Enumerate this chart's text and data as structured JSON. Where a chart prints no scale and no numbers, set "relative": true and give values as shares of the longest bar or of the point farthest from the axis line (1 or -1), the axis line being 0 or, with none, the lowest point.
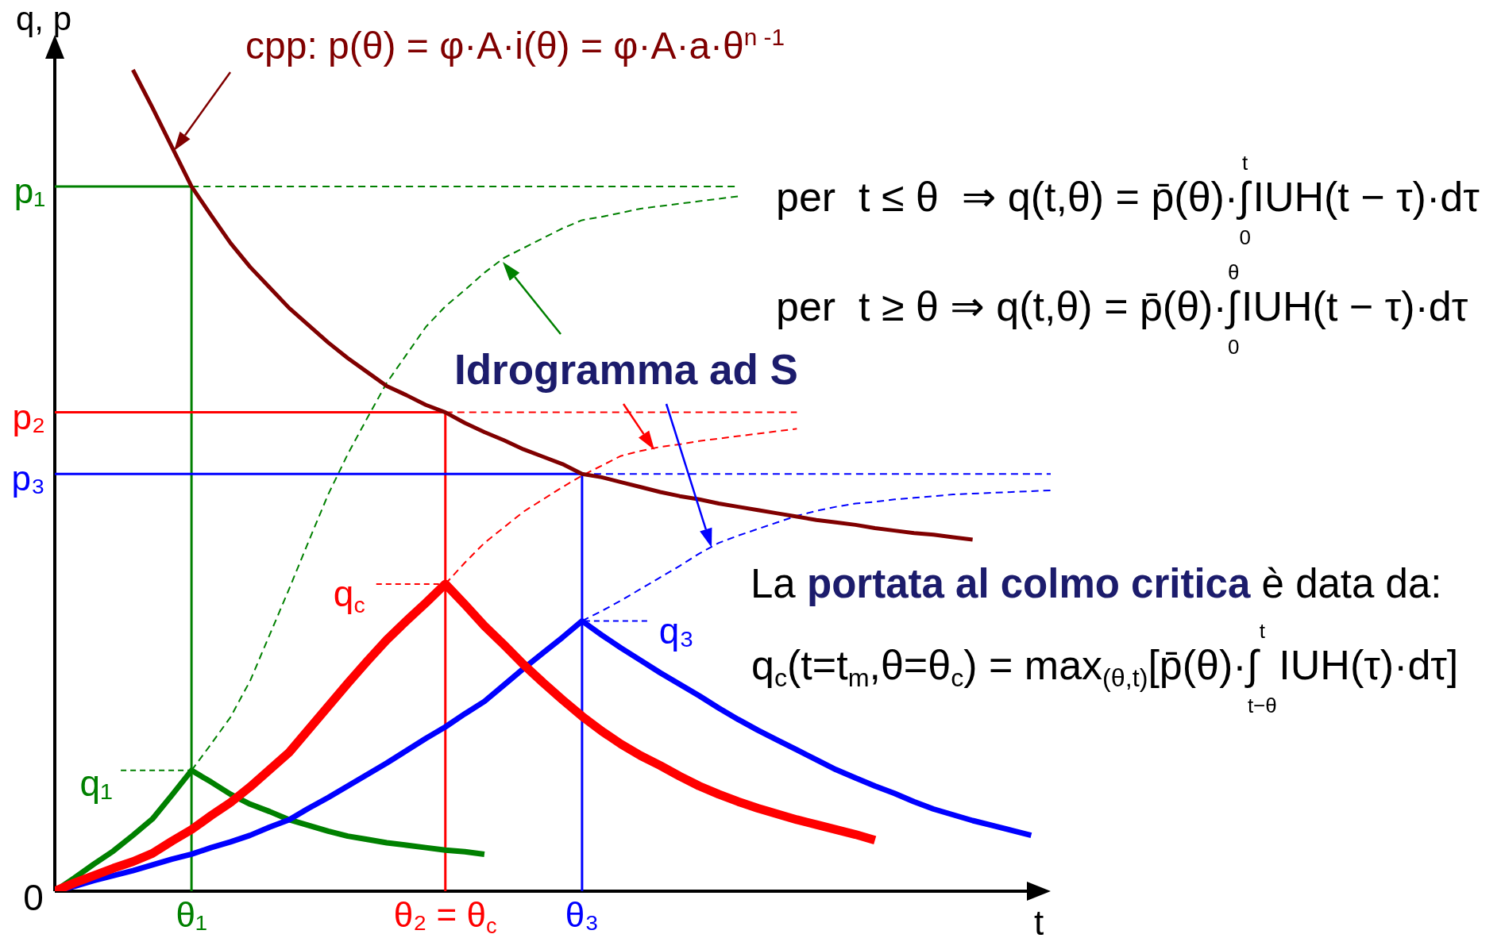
{
  "chart_data": {
    "type": "line",
    "relative": true,
    "xlabel": "t",
    "ylabel": "q, p",
    "categories": [
      null,
      null,
      null,
      null,
      null,
      null,
      null,
      "θ₁",
      null,
      null,
      null,
      null,
      null,
      null,
      null,
      null,
      null,
      null,
      null,
      null,
      "θ₂ = θ$_{c}$",
      null,
      null,
      null,
      null,
      null,
      null,
      "θ₃",
      null,
      null,
      null,
      null,
      null,
      null,
      null,
      null,
      null,
      null,
      null,
      null,
      null,
      null,
      null,
      null,
      null,
      null,
      null,
      null,
      null,
      null,
      null,
      null
    ],
    "series": [
      {
        "name": "cpp: p(θ) = φ·A·i(θ) = φ·A·a·θ$^{n -1}$",
        "color": "#800000",
        "values": [
          null,
          null,
          null,
          null,
          1.0,
          0.954,
          0.906,
          0.858,
          0.823,
          0.789,
          0.76,
          0.735,
          0.71,
          0.689,
          0.668,
          0.649,
          0.632,
          0.615,
          0.604,
          0.592,
          0.583,
          0.57,
          0.559,
          0.549,
          0.538,
          0.529,
          0.52,
          0.508,
          0.504,
          0.498,
          0.492,
          0.486,
          0.481,
          0.477,
          0.472,
          0.468,
          0.464,
          0.46,
          0.456,
          0.452,
          0.449,
          0.446,
          0.442,
          0.439,
          0.436,
          0.434,
          0.431,
          0.428,
          null,
          null,
          null,
          null
        ]
      },
      {
        "color": "#008000",
        "values": [
          0,
          0.016,
          0.033,
          0.049,
          0.068,
          0.088,
          0.117,
          0.147,
          0.133,
          0.118,
          0.106,
          0.097,
          0.087,
          0.08,
          0.073,
          0.067,
          0.063,
          0.059,
          0.056,
          0.053,
          0.05,
          0.048,
          0.045,
          null,
          null,
          null,
          null,
          null,
          null,
          null,
          null,
          null,
          null,
          null,
          null,
          null,
          null,
          null,
          null,
          null,
          null,
          null,
          null,
          null,
          null,
          null,
          null,
          null,
          null,
          null,
          null,
          null
        ]
      },
      {
        "color": "#ff0000",
        "values": [
          0,
          0.01,
          0.019,
          0.028,
          0.036,
          0.046,
          0.061,
          0.075,
          0.092,
          0.108,
          0.127,
          0.148,
          0.169,
          0.197,
          0.225,
          0.253,
          0.28,
          0.306,
          0.329,
          0.351,
          0.374,
          0.349,
          0.323,
          0.3,
          0.276,
          0.254,
          0.233,
          0.213,
          0.195,
          0.179,
          0.165,
          0.153,
          0.14,
          0.128,
          0.118,
          0.109,
          0.101,
          0.094,
          0.087,
          0.081,
          0.075,
          0.069,
          0.062,
          null,
          null,
          null,
          null,
          null,
          null,
          null,
          null,
          null
        ]
      },
      {
        "color": "#0000ff",
        "values": [
          0,
          0.006,
          0.013,
          0.019,
          0.025,
          0.032,
          0.039,
          0.045,
          0.053,
          0.06,
          0.068,
          0.078,
          0.087,
          0.101,
          0.114,
          0.128,
          0.142,
          0.156,
          0.171,
          0.186,
          0.2,
          0.216,
          0.231,
          0.251,
          0.271,
          0.29,
          0.309,
          0.329,
          0.312,
          0.296,
          0.281,
          0.266,
          0.252,
          0.238,
          0.223,
          0.209,
          0.196,
          0.184,
          0.172,
          0.16,
          0.148,
          0.138,
          0.128,
          0.119,
          0.109,
          0.1,
          0.093,
          0.086,
          0.08,
          0.074,
          0.068,
          null
        ]
      },
      {
        "color": "#008000",
        "line_style": "dashed",
        "values": [
          null,
          null,
          null,
          null,
          null,
          null,
          null,
          0.147,
          0.179,
          0.212,
          0.256,
          0.312,
          0.368,
          0.426,
          0.483,
          0.532,
          0.576,
          0.619,
          0.653,
          0.687,
          0.712,
          0.732,
          0.753,
          0.771,
          0.783,
          0.795,
          0.807,
          0.817,
          0.821,
          0.826,
          0.831,
          0.834,
          0.837,
          0.84,
          0.843,
          0.846,
          null,
          null,
          null,
          null,
          null,
          null,
          null,
          null,
          null,
          null,
          null,
          null,
          null,
          null,
          null,
          null
        ]
      },
      {
        "color": "#ff0000",
        "line_style": "dashed",
        "values": [
          null,
          null,
          null,
          null,
          null,
          null,
          null,
          null,
          null,
          null,
          null,
          null,
          null,
          null,
          null,
          null,
          null,
          null,
          null,
          null,
          0.374,
          0.4,
          0.424,
          0.443,
          0.462,
          0.477,
          0.492,
          0.506,
          0.518,
          0.53,
          0.536,
          0.541,
          0.544,
          0.548,
          0.551,
          0.554,
          0.557,
          0.56,
          0.563,
          null,
          null,
          null,
          null,
          null,
          null,
          null,
          null,
          null,
          null,
          null,
          null,
          null
        ]
      },
      {
        "color": "#0000ff",
        "line_style": "dashed",
        "values": [
          null,
          null,
          null,
          null,
          null,
          null,
          null,
          null,
          null,
          null,
          null,
          null,
          null,
          null,
          null,
          null,
          null,
          null,
          null,
          null,
          null,
          null,
          null,
          null,
          null,
          null,
          null,
          0.329,
          0.341,
          0.354,
          0.368,
          0.382,
          0.396,
          0.411,
          0.424,
          0.433,
          0.441,
          0.449,
          0.457,
          0.463,
          0.468,
          0.472,
          0.474,
          0.477,
          0.479,
          0.481,
          0.483,
          0.484,
          0.485,
          0.486,
          0.487,
          0.488
        ]
      },
      {
        "name": "p₁",
        "color": "#008000",
        "values": [
          0.858,
          0.858,
          0.858,
          0.858,
          0.858,
          0.858,
          0.858,
          0.858,
          null,
          null,
          null,
          null,
          null,
          null,
          null,
          null,
          null,
          null,
          null,
          null,
          null,
          null,
          null,
          null,
          null,
          null,
          null,
          null,
          null,
          null,
          null,
          null,
          null,
          null,
          null,
          null,
          null,
          null,
          null,
          null,
          null,
          null,
          null,
          null,
          null,
          null,
          null,
          null,
          null,
          null,
          null,
          null
        ]
      },
      {
        "name": "p₂",
        "color": "#ff0000",
        "values": [
          0.583,
          0.583,
          0.583,
          0.583,
          0.583,
          0.583,
          0.583,
          0.583,
          0.583,
          0.583,
          0.583,
          0.583,
          0.583,
          0.583,
          0.583,
          0.583,
          0.583,
          0.583,
          0.583,
          0.583,
          0.583,
          null,
          null,
          null,
          null,
          null,
          null,
          null,
          null,
          null,
          null,
          null,
          null,
          null,
          null,
          null,
          null,
          null,
          null,
          null,
          null,
          null,
          null,
          null,
          null,
          null,
          null,
          null,
          null,
          null,
          null,
          null
        ]
      },
      {
        "name": "p₃",
        "color": "#0000ff",
        "values": [
          0.508,
          0.508,
          0.508,
          0.508,
          0.508,
          0.508,
          0.508,
          0.508,
          0.508,
          0.508,
          0.508,
          0.508,
          0.508,
          0.508,
          0.508,
          0.508,
          0.508,
          0.508,
          0.508,
          0.508,
          0.508,
          0.508,
          0.508,
          0.508,
          0.508,
          0.508,
          0.508,
          0.508,
          null,
          null,
          null,
          null,
          null,
          null,
          null,
          null,
          null,
          null,
          null,
          null,
          null,
          null,
          null,
          null,
          null,
          null,
          null,
          null,
          null,
          null,
          null,
          null
        ]
      },
      {
        "color": "#008000",
        "line_style": "dashed",
        "values": [
          null,
          null,
          null,
          null,
          null,
          null,
          null,
          0.858,
          0.858,
          0.858,
          0.858,
          0.858,
          0.858,
          0.858,
          0.858,
          0.858,
          0.858,
          0.858,
          0.858,
          0.858,
          0.858,
          0.858,
          0.858,
          0.858,
          0.858,
          0.858,
          0.858,
          0.858,
          0.858,
          0.858,
          0.858,
          0.858,
          0.858,
          0.858,
          0.858,
          0.858,
          null,
          null,
          null,
          null,
          null,
          null,
          null,
          null,
          null,
          null,
          null,
          null,
          null,
          null,
          null,
          null
        ]
      },
      {
        "color": "#ff0000",
        "line_style": "dashed",
        "values": [
          null,
          null,
          null,
          null,
          null,
          null,
          null,
          null,
          null,
          null,
          null,
          null,
          null,
          null,
          null,
          null,
          null,
          null,
          null,
          null,
          0.583,
          0.583,
          0.583,
          0.583,
          0.583,
          0.583,
          0.583,
          0.583,
          0.583,
          0.583,
          0.583,
          0.583,
          0.583,
          0.583,
          0.583,
          0.583,
          0.583,
          0.583,
          0.583,
          null,
          null,
          null,
          null,
          null,
          null,
          null,
          null,
          null,
          null,
          null,
          null,
          null
        ]
      },
      {
        "color": "#0000ff",
        "line_style": "dashed",
        "values": [
          null,
          null,
          null,
          null,
          null,
          null,
          null,
          null,
          null,
          null,
          null,
          null,
          null,
          null,
          null,
          null,
          null,
          null,
          null,
          null,
          null,
          null,
          null,
          null,
          null,
          null,
          null,
          0.508,
          0.508,
          0.508,
          0.508,
          0.508,
          0.508,
          0.508,
          0.508,
          0.508,
          0.508,
          0.508,
          0.508,
          0.508,
          0.508,
          0.508,
          0.508,
          0.508,
          0.508,
          0.508,
          0.508,
          0.508,
          0.508,
          0.508,
          0.508,
          0.508
        ]
      },
      {
        "color": "#008000",
        "x": [
          "θ₁",
          "θ₁"
        ],
        "values": [
          0,
          0.858
        ]
      },
      {
        "color": "#ff0000",
        "x": [
          "θ₂ = θ$_{c}$",
          "θ₂ = θ$_{c}$"
        ],
        "values": [
          0,
          0.583
        ]
      },
      {
        "color": "#0000ff",
        "x": [
          "θ₃",
          "θ₃"
        ],
        "values": [
          0,
          0.508
        ]
      }
    ],
    "annotations": [
      "0",
      {
        "text": "q₁",
        "x": "θ₁",
        "y": 0.147
      },
      {
        "text": "q$_{c}$",
        "x": "θ₂ = θ$_{c}$",
        "y": 0.374
      },
      {
        "text": "q₃",
        "x": "θ₃",
        "y": 0.329
      },
      "Idrogramma ad S",
      "per  t ≤ θ  ⇒ q(t,θ) = p̄(θ)·∫$^{t}$$_{0}$IUH(t − τ)·dτ",
      "per  t ≥ θ ⇒ q(t,θ) = p̄(θ)·∫$^{θ}$$_{0}$IUH(t − τ)·dτ",
      "La",
      "portata al colmo critica",
      "è data da:",
      "q$_{c}$(t=t$_{m}$,θ=θ$_{c}$) = max$_{(θ,t)}$[p̄(θ)·∫$^{t}$$_{t−θ}$IUH(τ)·dτ]"
    ]
  }
}
